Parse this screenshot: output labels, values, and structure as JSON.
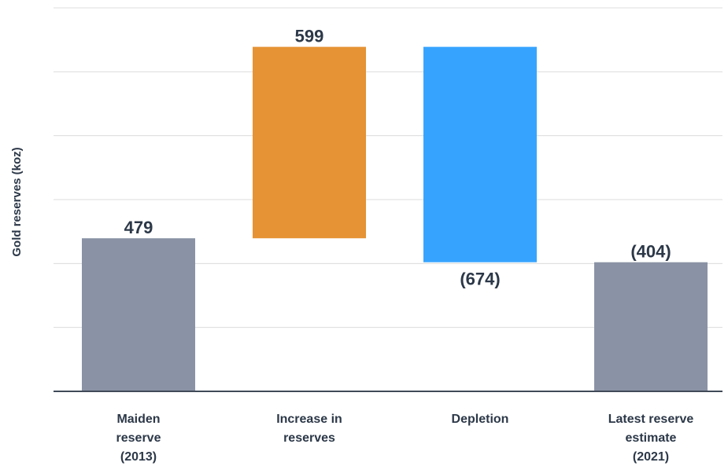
{
  "chart_data": {
    "type": "bar",
    "subtype": "waterfall",
    "ylabel": "Gold reserves (koz)",
    "categories": [
      "Maiden reserve (2013)",
      "Increase in reserves",
      "Depletion",
      "Latest reserve estimate (2021)"
    ],
    "category_lines": [
      [
        "Maiden",
        "reserve",
        "(2013)"
      ],
      [
        "Increase in",
        "reserves"
      ],
      [
        "Depletion"
      ],
      [
        "Latest reserve",
        "estimate",
        "(2021)"
      ]
    ],
    "bars": [
      {
        "kind": "total",
        "start": 0,
        "end": 479,
        "label": "479",
        "label_position": "above",
        "color": "#8a93a5"
      },
      {
        "kind": "increase",
        "start": 479,
        "end": 1078,
        "label": "599",
        "label_position": "above",
        "color": "#e69335"
      },
      {
        "kind": "decrease",
        "start": 1078,
        "end": 404,
        "label": "(674)",
        "label_position": "below",
        "color": "#36a4ff"
      },
      {
        "kind": "total",
        "start": 0,
        "end": 404,
        "label": "(404)",
        "label_position": "above",
        "color": "#8a93a5"
      }
    ],
    "ylim": [
      0,
      1200
    ],
    "gridlines": [
      200,
      400,
      600,
      800,
      1000,
      1200
    ],
    "grid": true,
    "legend": "none"
  }
}
